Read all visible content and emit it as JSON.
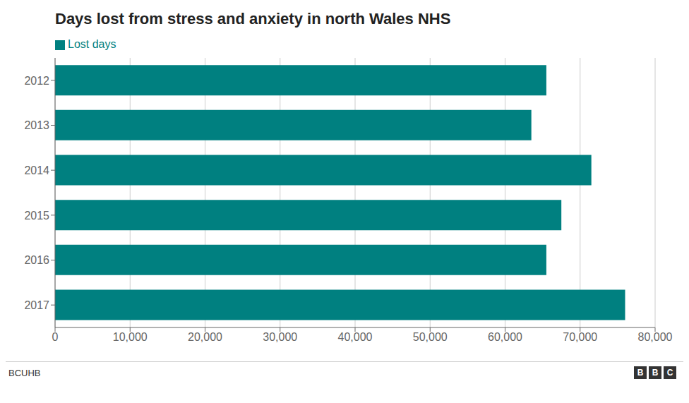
{
  "chart_data": {
    "type": "bar",
    "title": "Days lost from stress and anxiety in north Wales NHS",
    "orientation": "horizontal",
    "categories": [
      "2012",
      "2013",
      "2014",
      "2015",
      "2016",
      "2017"
    ],
    "series": [
      {
        "name": "Lost days",
        "color": "#008080",
        "values": [
          65500,
          63500,
          71500,
          67500,
          65500,
          76000
        ]
      }
    ],
    "xlim": [
      0,
      80000
    ],
    "xticks": [
      0,
      {
        "value": 10000,
        "label": "10,000"
      },
      {
        "value": 20000,
        "label": "20,000"
      },
      {
        "value": 30000,
        "label": "30,000"
      },
      {
        "value": 40000,
        "label": "40,000"
      },
      {
        "value": 50000,
        "label": "50,000"
      },
      {
        "value": 60000,
        "label": "60,000"
      },
      {
        "value": 70000,
        "label": "70,000"
      },
      {
        "value": 80000,
        "label": "80,000"
      }
    ],
    "grid": true,
    "legend": "upper left",
    "annotations": [
      "BCUHB",
      "BBC"
    ]
  }
}
